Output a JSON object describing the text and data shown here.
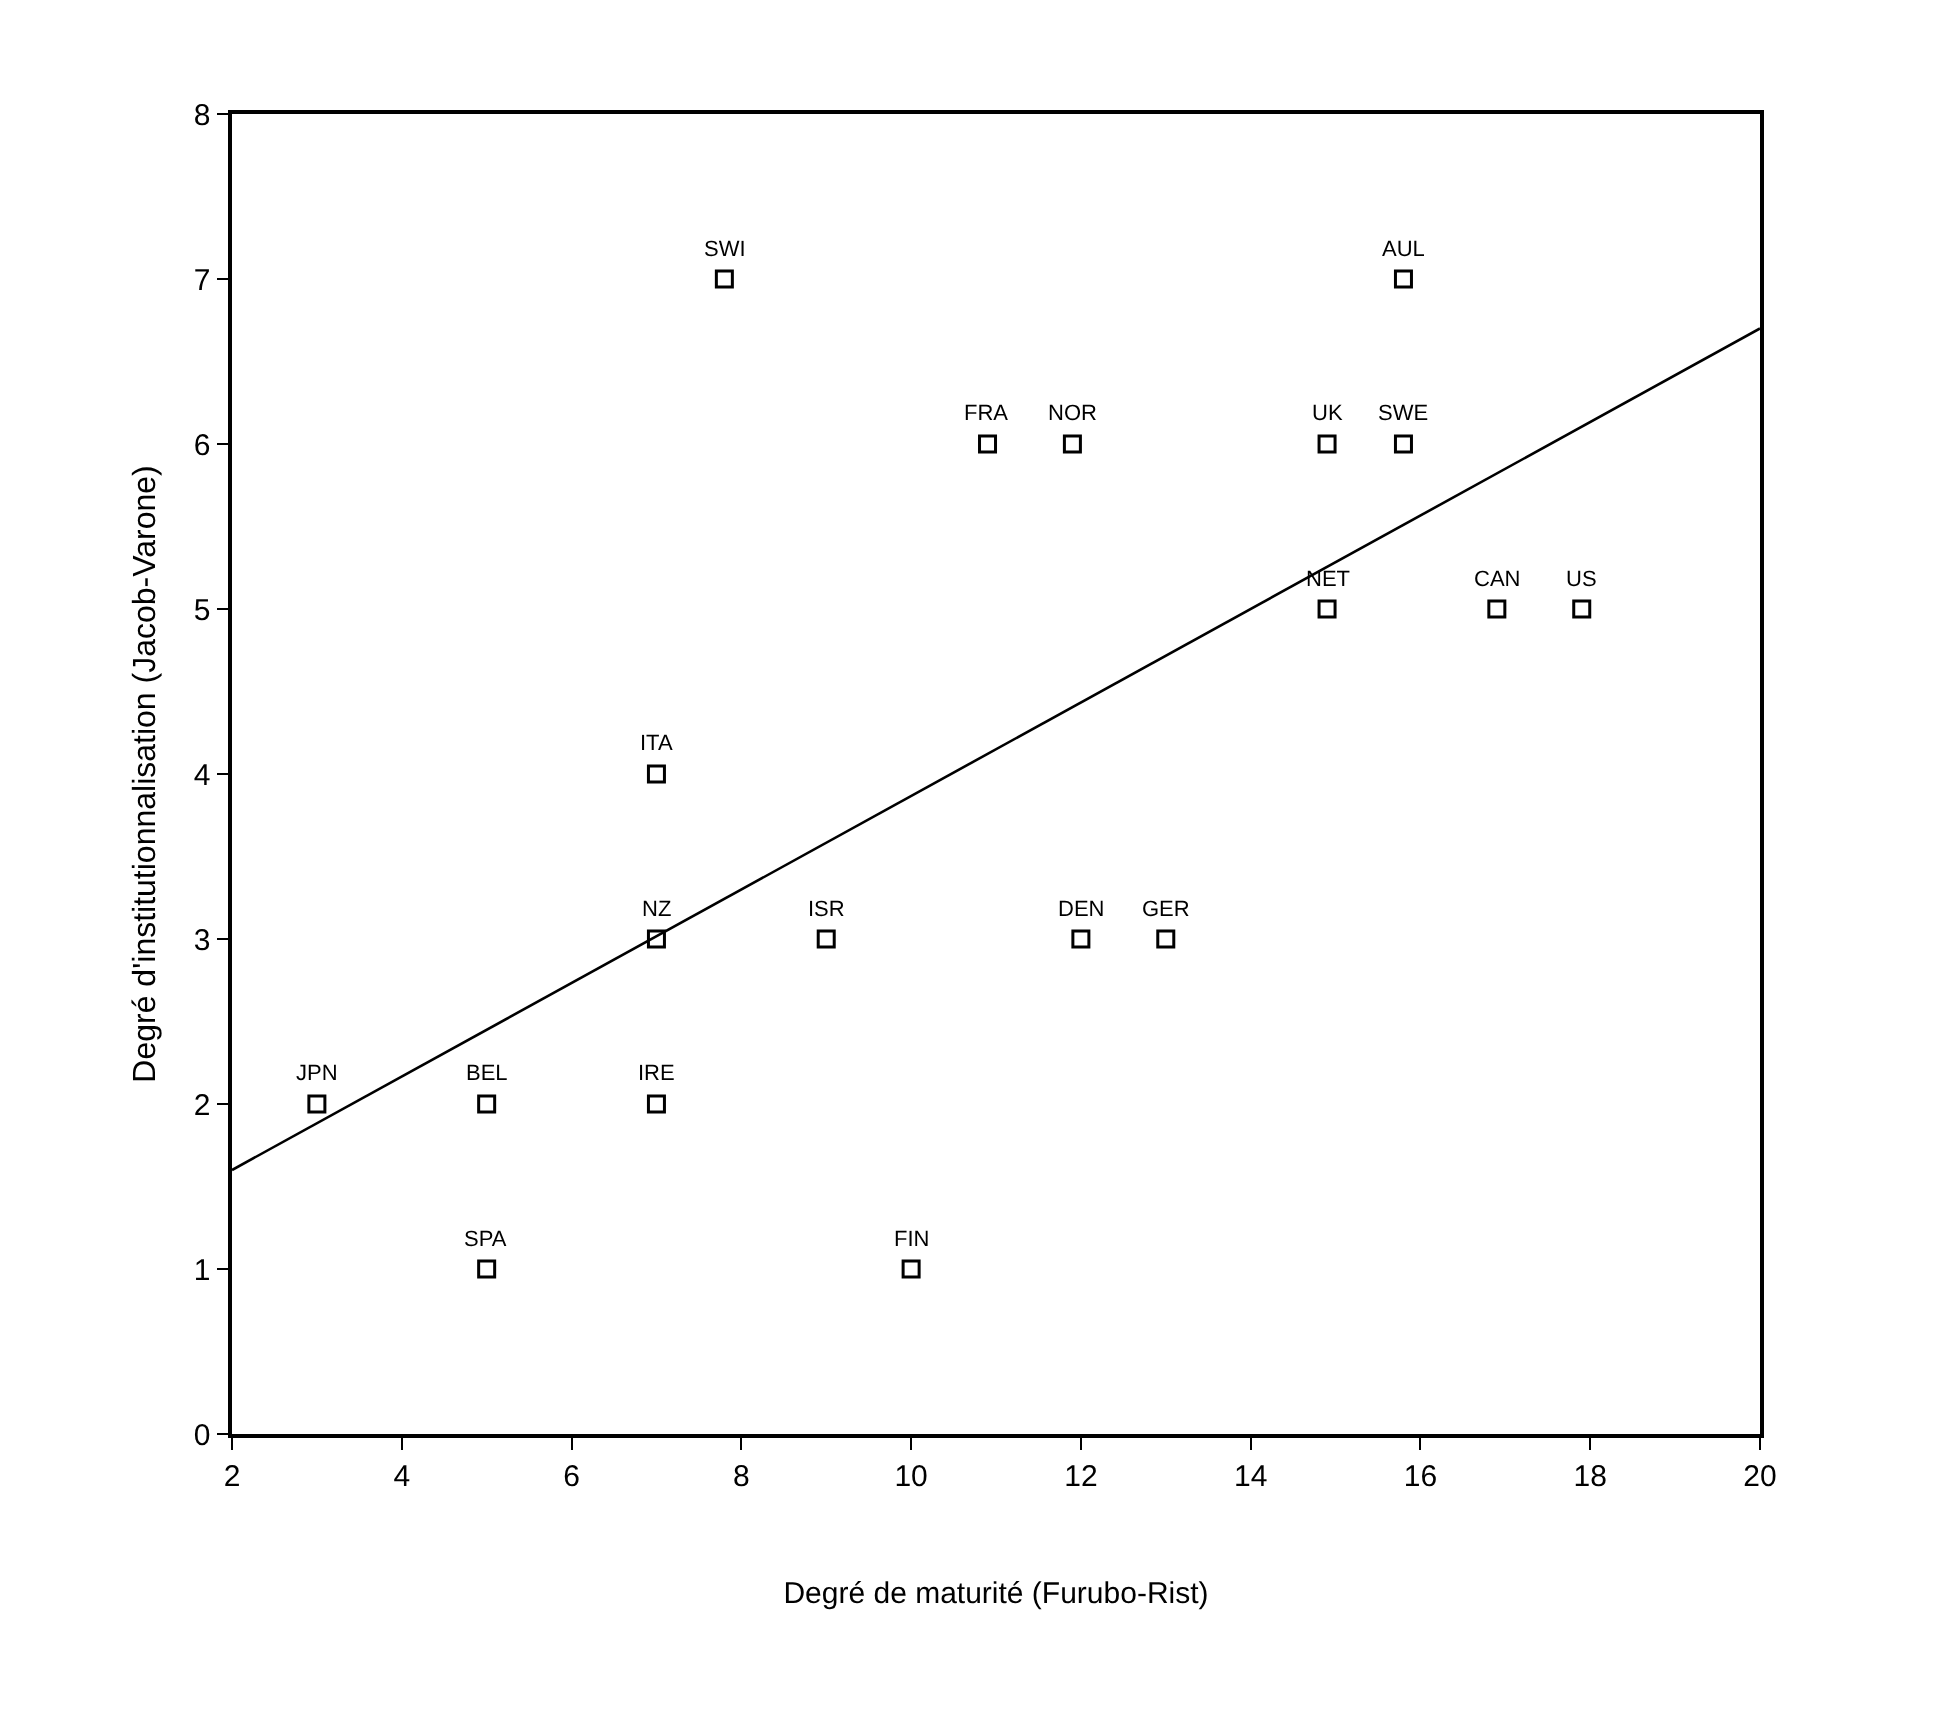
{
  "chart_data": {
    "type": "scatter",
    "xlabel": "Degré de maturité (Furubo-Rist)",
    "ylabel": "Degré d'institutionnalisation (Jacob-Varone)",
    "xlim": [
      2,
      20
    ],
    "xticks": [
      2,
      4,
      6,
      8,
      10,
      12,
      14,
      16,
      18,
      20
    ],
    "ylim": [
      0,
      8
    ],
    "yticks": [
      0,
      1,
      2,
      3,
      4,
      5,
      6,
      7,
      8
    ],
    "marker": "square",
    "series": [
      {
        "color": "#000000",
        "x": [
          3,
          5,
          5,
          7,
          7,
          7,
          7.8,
          9,
          10,
          10.9,
          11.9,
          12,
          13,
          14.9,
          14.9,
          15.8,
          15.8,
          16.9,
          17.9
        ],
        "values": [
          2,
          2,
          1,
          4,
          3,
          2,
          7,
          3,
          1,
          6,
          6,
          3,
          3,
          6,
          5,
          6,
          7,
          5,
          5
        ]
      },
      {
        "type": "line",
        "color": "#000000",
        "line_style": "solid",
        "marker": "none",
        "x": [
          2,
          20
        ],
        "values": [
          1.6,
          6.7
        ]
      }
    ],
    "annotations": [
      {
        "text": "JPN",
        "x": 3,
        "y": 2
      },
      {
        "text": "BEL",
        "x": 5,
        "y": 2
      },
      {
        "text": "SPA",
        "x": 5,
        "y": 1
      },
      {
        "text": "ITA",
        "x": 7,
        "y": 4
      },
      {
        "text": "NZ",
        "x": 7,
        "y": 3
      },
      {
        "text": "IRE",
        "x": 7,
        "y": 2
      },
      {
        "text": "SWI",
        "x": 7.8,
        "y": 7
      },
      {
        "text": "ISR",
        "x": 9,
        "y": 3
      },
      {
        "text": "FIN",
        "x": 10,
        "y": 1
      },
      {
        "text": "FRA",
        "x": 10.9,
        "y": 6
      },
      {
        "text": "NOR",
        "x": 11.9,
        "y": 6
      },
      {
        "text": "DEN",
        "x": 12,
        "y": 3
      },
      {
        "text": "GER",
        "x": 13,
        "y": 3
      },
      {
        "text": "UK",
        "x": 14.9,
        "y": 6
      },
      {
        "text": "NET",
        "x": 14.9,
        "y": 5
      },
      {
        "text": "SWE",
        "x": 15.8,
        "y": 6
      },
      {
        "text": "AUL",
        "x": 15.8,
        "y": 7
      },
      {
        "text": "CAN",
        "x": 16.9,
        "y": 5
      },
      {
        "text": "US",
        "x": 17.9,
        "y": 5
      }
    ]
  }
}
